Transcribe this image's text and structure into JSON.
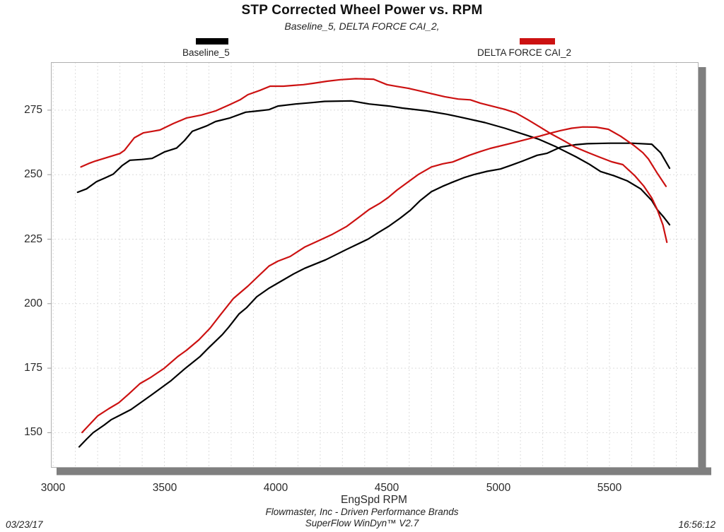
{
  "footer": {
    "company": "Flowmaster, Inc - Driven Performance Brands",
    "software": "SuperFlow WinDyn™ V2.7",
    "date": "03/23/17",
    "time": "16:56:12"
  },
  "chart_data": {
    "type": "line",
    "title": "STP Corrected Wheel Power vs. RPM",
    "subtitle": "Baseline_5, DELTA FORCE CAI_2,",
    "xlabel": "EngSpd RPM",
    "ylabel": "",
    "xlim": [
      2990,
      5897
    ],
    "ylim": [
      136.7,
      293.6
    ],
    "x_ticks": [
      3000,
      3500,
      4000,
      4500,
      5000,
      5500
    ],
    "y_ticks": [
      150,
      175,
      200,
      225,
      250,
      275
    ],
    "grid": {
      "x_start": 3000,
      "x_step": 100,
      "y_gridlines_at_y_ticks": true,
      "style": "dashed"
    },
    "legend_position": "top",
    "legend": [
      {
        "name": "Baseline_5",
        "color": "#000000"
      },
      {
        "name": "DELTA FORCE CAI_2",
        "color": "#cc1111"
      }
    ],
    "series": [
      {
        "name": "Baseline_5",
        "color": "#000000",
        "curves": [
          {
            "id": "torque",
            "points": [
              [
                3110,
                243.2
              ],
              [
                3150,
                244.5
              ],
              [
                3195,
                247.3
              ],
              [
                3235,
                248.8
              ],
              [
                3270,
                250.2
              ],
              [
                3310,
                253.5
              ],
              [
                3345,
                255.6
              ],
              [
                3400,
                255.9
              ],
              [
                3445,
                256.3
              ],
              [
                3500,
                258.8
              ],
              [
                3555,
                260.3
              ],
              [
                3590,
                263.2
              ],
              [
                3625,
                266.8
              ],
              [
                3690,
                268.9
              ],
              [
                3730,
                270.6
              ],
              [
                3795,
                272.0
              ],
              [
                3865,
                274.2
              ],
              [
                3920,
                274.7
              ],
              [
                3970,
                275.2
              ],
              [
                4010,
                276.6
              ],
              [
                4090,
                277.4
              ],
              [
                4160,
                277.9
              ],
              [
                4220,
                278.4
              ],
              [
                4340,
                278.6
              ],
              [
                4420,
                277.4
              ],
              [
                4510,
                276.6
              ],
              [
                4570,
                275.8
              ],
              [
                4680,
                274.7
              ],
              [
                4770,
                273.4
              ],
              [
                4830,
                272.3
              ],
              [
                4940,
                270.2
              ],
              [
                5030,
                268.0
              ],
              [
                5130,
                265.2
              ],
              [
                5180,
                263.8
              ],
              [
                5260,
                260.8
              ],
              [
                5350,
                256.9
              ],
              [
                5410,
                254.0
              ],
              [
                5460,
                251.2
              ],
              [
                5520,
                249.6
              ],
              [
                5580,
                247.6
              ],
              [
                5640,
                244.5
              ],
              [
                5690,
                240.0
              ],
              [
                5715,
                236.4
              ],
              [
                5745,
                233.4
              ],
              [
                5770,
                230.6
              ]
            ]
          },
          {
            "id": "power",
            "points": [
              [
                3117,
                144.5
              ],
              [
                3150,
                147.5
              ],
              [
                3180,
                150.0
              ],
              [
                3230,
                153.0
              ],
              [
                3260,
                155.0
              ],
              [
                3310,
                157.2
              ],
              [
                3350,
                159.0
              ],
              [
                3440,
                164.5
              ],
              [
                3530,
                170.2
              ],
              [
                3595,
                175.0
              ],
              [
                3660,
                179.5
              ],
              [
                3700,
                183.0
              ],
              [
                3760,
                188.0
              ],
              [
                3790,
                191.0
              ],
              [
                3835,
                196.0
              ],
              [
                3870,
                198.5
              ],
              [
                3915,
                202.7
              ],
              [
                3970,
                206.0
              ],
              [
                4030,
                209.0
              ],
              [
                4080,
                211.5
              ],
              [
                4130,
                213.7
              ],
              [
                4225,
                217.0
              ],
              [
                4320,
                221.1
              ],
              [
                4415,
                225.0
              ],
              [
                4460,
                227.5
              ],
              [
                4510,
                230.1
              ],
              [
                4560,
                233.2
              ],
              [
                4605,
                236.2
              ],
              [
                4650,
                240.0
              ],
              [
                4700,
                243.4
              ],
              [
                4750,
                245.5
              ],
              [
                4795,
                247.1
              ],
              [
                4845,
                248.8
              ],
              [
                4890,
                250.0
              ],
              [
                4950,
                251.3
              ],
              [
                5010,
                252.2
              ],
              [
                5060,
                253.7
              ],
              [
                5110,
                255.3
              ],
              [
                5175,
                257.5
              ],
              [
                5220,
                258.3
              ],
              [
                5280,
                260.7
              ],
              [
                5345,
                261.6
              ],
              [
                5400,
                262.0
              ],
              [
                5500,
                262.2
              ],
              [
                5600,
                262.2
              ],
              [
                5690,
                261.8
              ],
              [
                5730,
                258.5
              ],
              [
                5770,
                252.5
              ]
            ]
          }
        ]
      },
      {
        "name": "DELTA FORCE CAI_2",
        "color": "#cc1111",
        "curves": [
          {
            "id": "torque",
            "points": [
              [
                3125,
                253.0
              ],
              [
                3165,
                254.5
              ],
              [
                3190,
                255.3
              ],
              [
                3255,
                257.0
              ],
              [
                3300,
                258.2
              ],
              [
                3320,
                259.4
              ],
              [
                3365,
                264.3
              ],
              [
                3405,
                266.2
              ],
              [
                3445,
                266.8
              ],
              [
                3480,
                267.3
              ],
              [
                3540,
                269.8
              ],
              [
                3600,
                272.0
              ],
              [
                3665,
                273.1
              ],
              [
                3730,
                274.7
              ],
              [
                3795,
                277.2
              ],
              [
                3840,
                279.0
              ],
              [
                3875,
                281.0
              ],
              [
                3930,
                282.7
              ],
              [
                3975,
                284.3
              ],
              [
                4035,
                284.3
              ],
              [
                4080,
                284.6
              ],
              [
                4125,
                284.9
              ],
              [
                4170,
                285.4
              ],
              [
                4230,
                286.2
              ],
              [
                4290,
                286.8
              ],
              [
                4360,
                287.2
              ],
              [
                4440,
                287.0
              ],
              [
                4500,
                284.9
              ],
              [
                4545,
                284.2
              ],
              [
                4595,
                283.5
              ],
              [
                4660,
                282.2
              ],
              [
                4700,
                281.4
              ],
              [
                4760,
                280.2
              ],
              [
                4820,
                279.3
              ],
              [
                4875,
                279.0
              ],
              [
                4920,
                277.7
              ],
              [
                4975,
                276.5
              ],
              [
                5030,
                275.3
              ],
              [
                5080,
                273.9
              ],
              [
                5135,
                271.2
              ],
              [
                5185,
                268.6
              ],
              [
                5240,
                265.7
              ],
              [
                5290,
                263.4
              ],
              [
                5345,
                260.7
              ],
              [
                5400,
                258.7
              ],
              [
                5455,
                256.8
              ],
              [
                5510,
                255.0
              ],
              [
                5560,
                253.9
              ],
              [
                5615,
                249.5
              ],
              [
                5655,
                245.5
              ],
              [
                5690,
                241.0
              ],
              [
                5715,
                236.4
              ],
              [
                5740,
                230.5
              ],
              [
                5758,
                223.8
              ]
            ]
          },
          {
            "id": "power",
            "points": [
              [
                3130,
                150.1
              ],
              [
                3200,
                156.5
              ],
              [
                3250,
                159.3
              ],
              [
                3295,
                161.6
              ],
              [
                3340,
                165.0
              ],
              [
                3390,
                169.0
              ],
              [
                3440,
                171.5
              ],
              [
                3500,
                175.0
              ],
              [
                3560,
                179.5
              ],
              [
                3600,
                182.0
              ],
              [
                3655,
                186.0
              ],
              [
                3705,
                190.5
              ],
              [
                3750,
                195.5
              ],
              [
                3810,
                202.0
              ],
              [
                3875,
                206.8
              ],
              [
                3920,
                210.5
              ],
              [
                3970,
                214.6
              ],
              [
                4010,
                216.5
              ],
              [
                4065,
                218.3
              ],
              [
                4130,
                221.9
              ],
              [
                4190,
                224.3
              ],
              [
                4255,
                226.9
              ],
              [
                4320,
                230.0
              ],
              [
                4385,
                234.2
              ],
              [
                4420,
                236.5
              ],
              [
                4470,
                239.0
              ],
              [
                4505,
                241.1
              ],
              [
                4545,
                244.0
              ],
              [
                4600,
                247.5
              ],
              [
                4640,
                250.0
              ],
              [
                4700,
                253.0
              ],
              [
                4750,
                254.2
              ],
              [
                4795,
                254.9
              ],
              [
                4870,
                257.5
              ],
              [
                4920,
                259.0
              ],
              [
                4965,
                260.2
              ],
              [
                5060,
                262.2
              ],
              [
                5150,
                264.2
              ],
              [
                5185,
                264.9
              ],
              [
                5230,
                266.0
              ],
              [
                5280,
                267.1
              ],
              [
                5330,
                268.0
              ],
              [
                5380,
                268.5
              ],
              [
                5440,
                268.4
              ],
              [
                5495,
                267.6
              ],
              [
                5550,
                264.9
              ],
              [
                5610,
                261.3
              ],
              [
                5650,
                258.5
              ],
              [
                5675,
                256.1
              ],
              [
                5716,
                250.4
              ],
              [
                5754,
                245.5
              ]
            ]
          }
        ]
      }
    ]
  }
}
